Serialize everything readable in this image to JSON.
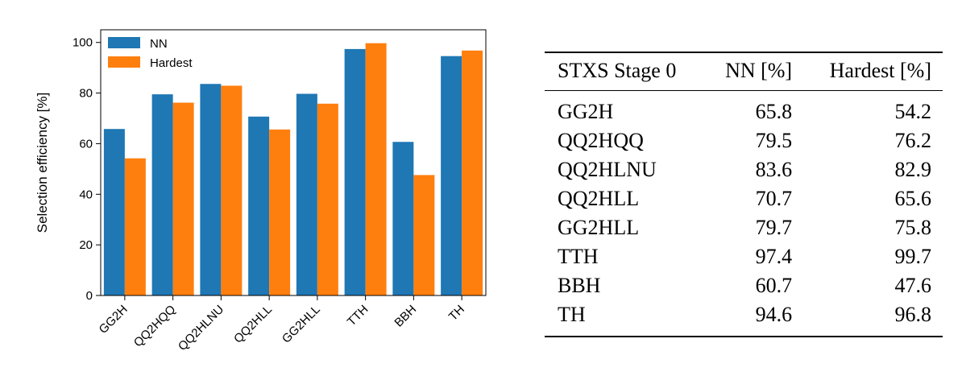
{
  "chart_data": {
    "type": "bar",
    "categories": [
      "GG2H",
      "QQ2HQQ",
      "QQ2HLNU",
      "QQ2HLL",
      "GG2HLL",
      "TTH",
      "BBH",
      "TH"
    ],
    "series": [
      {
        "name": "NN",
        "values": [
          65.8,
          79.5,
          83.6,
          70.7,
          79.7,
          97.4,
          60.7,
          94.6
        ],
        "color": "#1f77b4"
      },
      {
        "name": "Hardest",
        "values": [
          54.2,
          76.2,
          82.9,
          65.6,
          75.8,
          99.7,
          47.6,
          96.8
        ],
        "color": "#ff7f0e"
      }
    ],
    "xlabel": "",
    "ylabel": "Selection efficiency [%]",
    "ylim": [
      0,
      105
    ],
    "yticks": [
      0,
      20,
      40,
      60,
      80,
      100
    ],
    "grid": false,
    "legend_position": "top-left"
  },
  "table": {
    "headers": [
      "STXS Stage 0",
      "NN [%]",
      "Hardest [%]"
    ],
    "rows": [
      [
        "GG2H",
        "65.8",
        "54.2"
      ],
      [
        "QQ2HQQ",
        "79.5",
        "76.2"
      ],
      [
        "QQ2HLNU",
        "83.6",
        "82.9"
      ],
      [
        "QQ2HLL",
        "70.7",
        "65.6"
      ],
      [
        "GG2HLL",
        "79.7",
        "75.8"
      ],
      [
        "TTH",
        "97.4",
        "99.7"
      ],
      [
        "BBH",
        "60.7",
        "47.6"
      ],
      [
        "TH",
        "94.6",
        "96.8"
      ]
    ]
  }
}
